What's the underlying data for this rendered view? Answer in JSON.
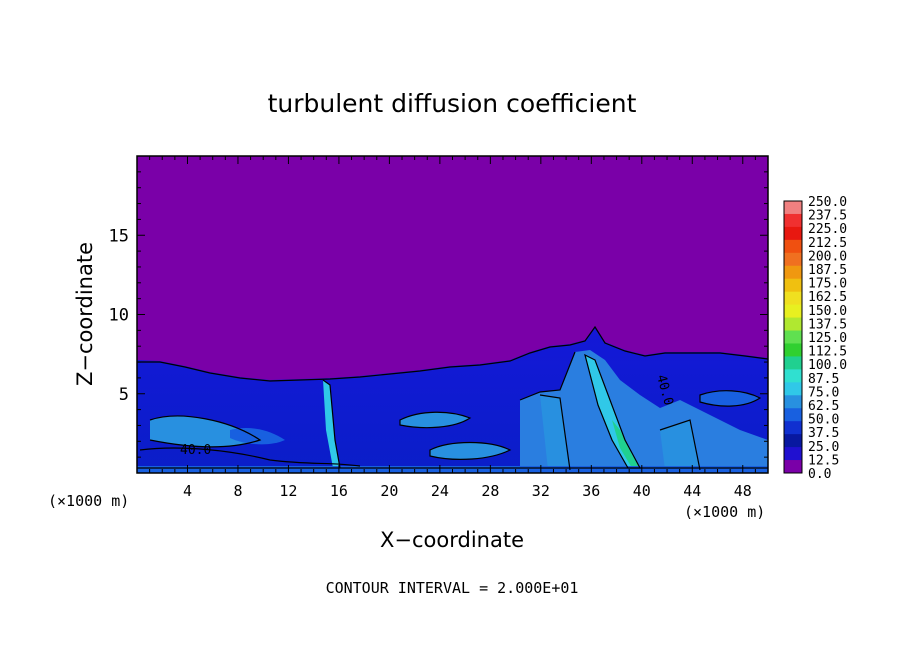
{
  "chart_data": {
    "type": "heatmap",
    "title": "turbulent diffusion coefficient",
    "xlabel": "X−coordinate",
    "ylabel": "Z−coordinate",
    "x_units_left": "(×1000 m)",
    "x_units_right": "(×1000 m)",
    "xlim": [
      0,
      50
    ],
    "ylim": [
      0,
      20
    ],
    "x_ticks": [
      "4",
      "8",
      "12",
      "16",
      "20",
      "24",
      "28",
      "32",
      "36",
      "40",
      "44",
      "48"
    ],
    "y_ticks": [
      "5",
      "10",
      "15"
    ],
    "y_tick_values": [
      5,
      10,
      15
    ],
    "x_tick_values": [
      4,
      8,
      12,
      16,
      20,
      24,
      28,
      32,
      36,
      40,
      44,
      48
    ],
    "contour_labels": [
      "40.0",
      "40.0"
    ],
    "footer": "CONTOUR INTERVAL = 2.000E+01",
    "colorbar": {
      "labels": [
        "250.0",
        "237.5",
        "225.0",
        "212.5",
        "200.0",
        "187.5",
        "175.0",
        "162.5",
        "150.0",
        "137.5",
        "125.0",
        "112.5",
        "100.0",
        "87.5",
        "75.0",
        "62.5",
        "50.0",
        "37.5",
        "25.0",
        "12.5",
        "0.0"
      ],
      "colors": [
        "#f08080",
        "#f03030",
        "#e81810",
        "#f05010",
        "#f07020",
        "#f09810",
        "#f0c010",
        "#f0e020",
        "#e8f020",
        "#b0e830",
        "#60e050",
        "#30d030",
        "#20d090",
        "#30e0d0",
        "#30c8e8",
        "#2890e0",
        "#1860e0",
        "#1030d0",
        "#0818a0",
        "#2010d0",
        "#7a00a8"
      ]
    },
    "background_value_color": "#7a00a8"
  }
}
